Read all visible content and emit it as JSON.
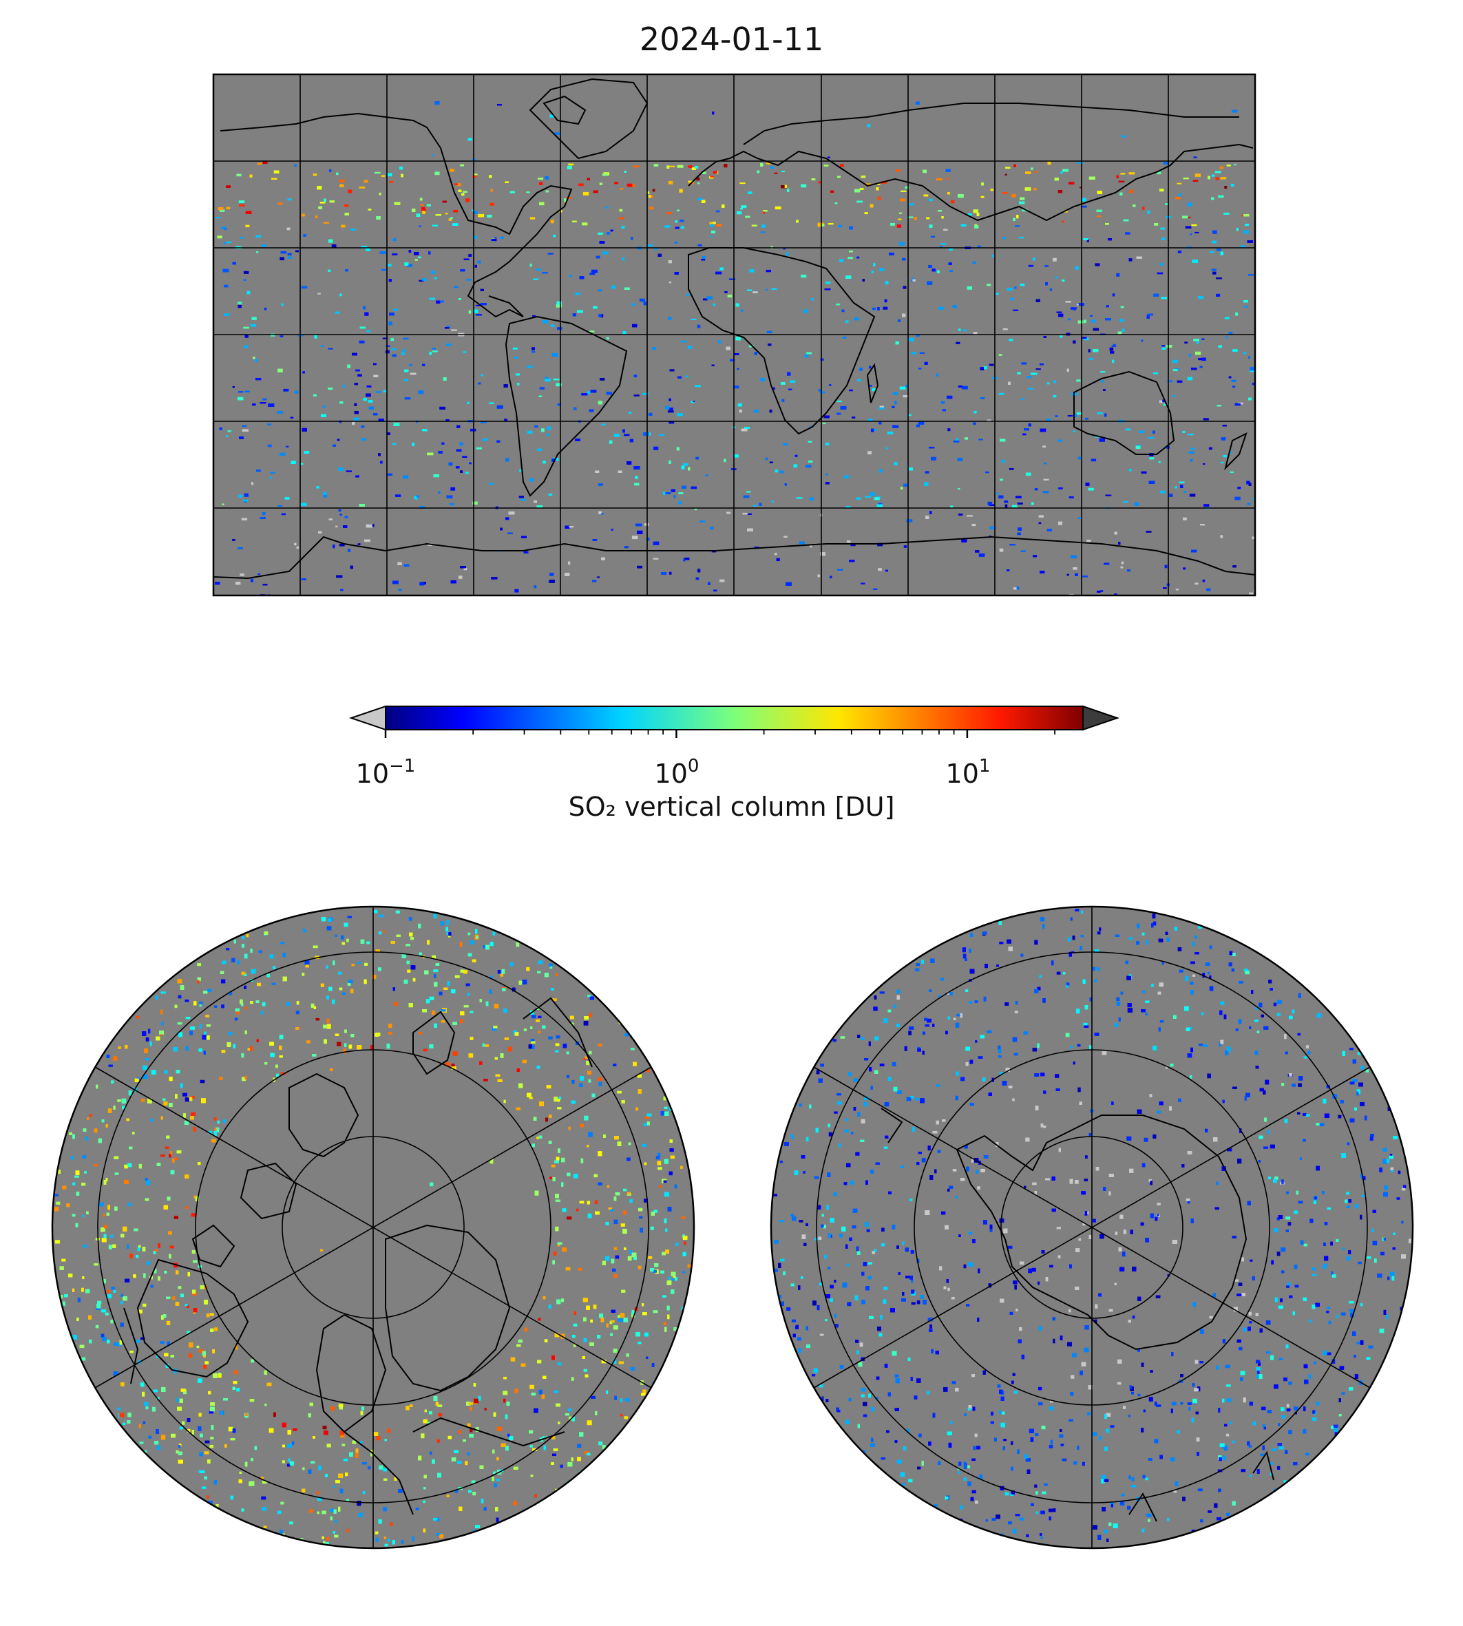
{
  "title": "2024-01-11",
  "colorbar": {
    "label": "SO₂ vertical column [DU]",
    "scale": "log",
    "range": [
      0.1,
      25
    ],
    "ticks": [
      {
        "base": "10",
        "exp": "−1",
        "value": 0.1
      },
      {
        "base": "10",
        "exp": "0",
        "value": 1
      },
      {
        "base": "10",
        "exp": "1",
        "value": 10
      }
    ],
    "colormap": "jet",
    "under_color": "#c8c8c8",
    "over_color": "#3c3c3c"
  },
  "colors": {
    "no_data": "#808080",
    "low_value": "#c8c8c8",
    "coastline": "#000000",
    "grid": "#000000"
  },
  "maps": [
    {
      "name": "global",
      "projection": "plate-carree",
      "grid": true
    },
    {
      "name": "north-polar",
      "projection": "north-polar-stereographic",
      "grid": true
    },
    {
      "name": "south-polar",
      "projection": "south-polar-stereographic",
      "grid": true
    }
  ]
}
